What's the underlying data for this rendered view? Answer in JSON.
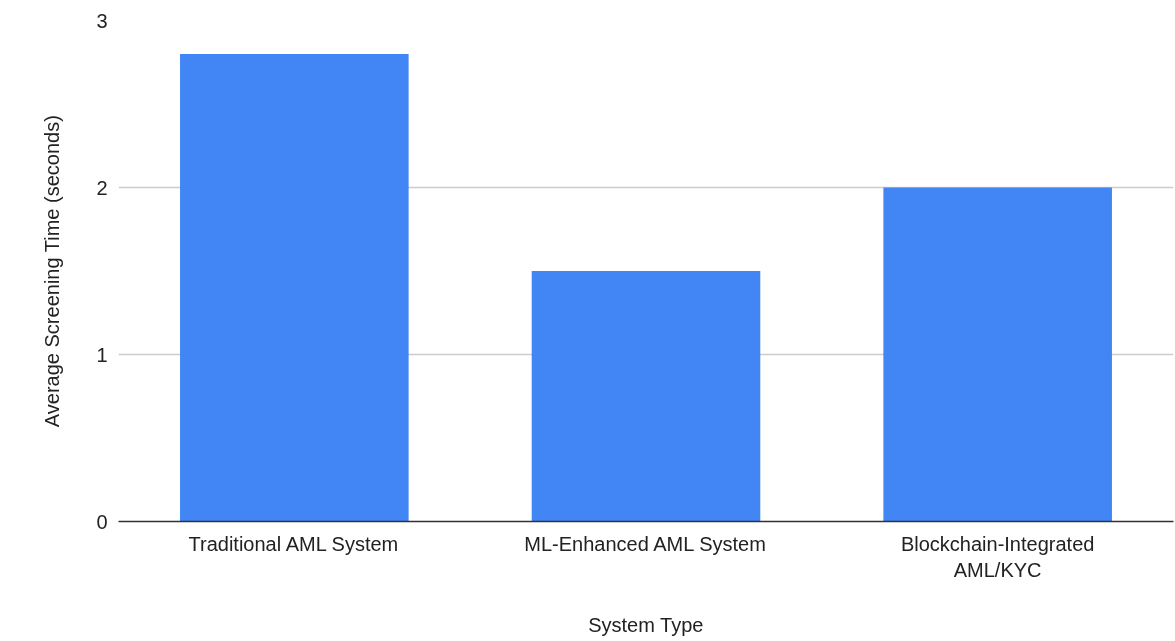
{
  "chart_data": {
    "type": "bar",
    "xlabel": "System Type",
    "ylabel": "Average Screening Time (seconds)",
    "categories": [
      "Traditional AML System",
      "ML-Enhanced AML System",
      "Blockchain-Integrated AML/KYC"
    ],
    "values": [
      2.8,
      1.5,
      2.0
    ],
    "color": "#4285f4",
    "ylim": [
      0,
      3
    ],
    "yticks": [
      0,
      1,
      2,
      3
    ],
    "grid": "y"
  }
}
